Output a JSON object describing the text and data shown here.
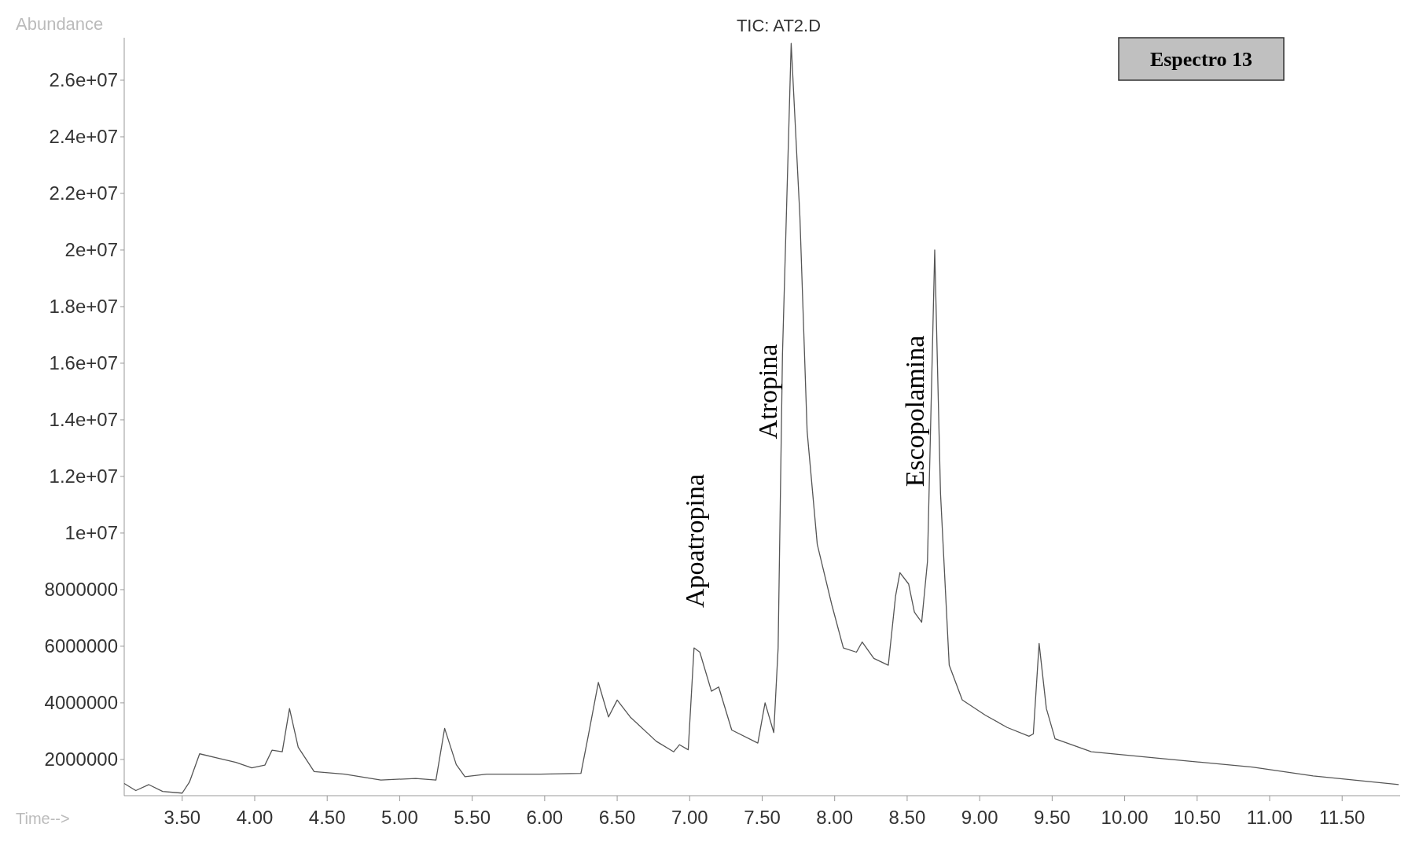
{
  "chart_data": {
    "type": "line",
    "title": "TIC: AT2.D",
    "xlabel": "Time-->",
    "ylabel": "Abundance",
    "annotations": [
      "Apoatropina",
      "Atropina",
      "Escopolamina",
      "Espectro 13"
    ],
    "xlim": [
      3.1,
      11.9
    ],
    "ylim": [
      720000,
      27500000
    ],
    "xticks": [
      {
        "value": 3.5,
        "label": "3.50"
      },
      {
        "value": 4,
        "label": "4.00"
      },
      {
        "value": 4.5,
        "label": "4.50"
      },
      {
        "value": 5,
        "label": "5.00"
      },
      {
        "value": 5.5,
        "label": "5.50"
      },
      {
        "value": 6,
        "label": "6.00"
      },
      {
        "value": 6.5,
        "label": "6.50"
      },
      {
        "value": 7,
        "label": "7.00"
      },
      {
        "value": 7.5,
        "label": "7.50"
      },
      {
        "value": 8,
        "label": "8.00"
      },
      {
        "value": 8.5,
        "label": "8.50"
      },
      {
        "value": 9,
        "label": "9.00"
      },
      {
        "value": 9.5,
        "label": "9.50"
      },
      {
        "value": 10,
        "label": "10.00"
      },
      {
        "value": 10.5,
        "label": "10.50"
      },
      {
        "value": 11,
        "label": "11.00"
      },
      {
        "value": 11.5,
        "label": "11.50"
      }
    ],
    "yticks": [
      2000000,
      4000000,
      6000000,
      8000000,
      {
        "value": 10000000,
        "label": "1e+07"
      },
      {
        "value": 12000000,
        "label": "1.2e+07"
      },
      {
        "value": 14000000,
        "label": "1.4e+07"
      },
      {
        "value": 16000000,
        "label": "1.6e+07"
      },
      {
        "value": 18000000,
        "label": "1.8e+07"
      },
      {
        "value": 20000000,
        "label": "2e+07"
      },
      {
        "value": 22000000,
        "label": "2.2e+07"
      },
      {
        "value": 24000000,
        "label": "2.4e+07"
      },
      {
        "value": 26000000,
        "label": "2.6e+07"
      }
    ],
    "grid": false,
    "marker": "none",
    "line_style": "solid",
    "series": [
      {
        "color": "#555555",
        "x": [
          3.1,
          3.18,
          3.27,
          3.365,
          3.5,
          3.55,
          3.62,
          3.76,
          3.87,
          3.98,
          4.07,
          4.12,
          4.19,
          4.24,
          4.3,
          4.41,
          4.62,
          4.87,
          5.11,
          5.25,
          5.31,
          5.39,
          5.45,
          5.6,
          5.97,
          6.25,
          6.3,
          6.37,
          6.44,
          6.5,
          6.59,
          6.77,
          6.89,
          6.93,
          6.99,
          7.03,
          7.07,
          7.15,
          7.2,
          7.29,
          7.47,
          7.52,
          7.58,
          7.61,
          7.64,
          7.7,
          7.76,
          7.81,
          7.88,
          7.98,
          8.06,
          8.15,
          8.19,
          8.27,
          8.37,
          8.42,
          8.45,
          8.51,
          8.55,
          8.6,
          8.64,
          8.69,
          8.73,
          8.79,
          8.88,
          9.04,
          9.19,
          9.34,
          9.37,
          9.41,
          9.46,
          9.52,
          9.77,
          10.26,
          10.88,
          11.3,
          11.89
        ],
        "values": [
          1150000,
          900000,
          1110000,
          870000,
          810000,
          1200000,
          2200000,
          2030000,
          1900000,
          1700000,
          1800000,
          2330000,
          2270000,
          3800000,
          2430000,
          1570000,
          1480000,
          1270000,
          1330000,
          1270000,
          3100000,
          1820000,
          1390000,
          1480000,
          1480000,
          1510000,
          2820000,
          4720000,
          3500000,
          4100000,
          3500000,
          2640000,
          2270000,
          2520000,
          2340000,
          5940000,
          5790000,
          4410000,
          4560000,
          3040000,
          2580000,
          4000000,
          2950000,
          5940000,
          16300000,
          27300000,
          21200000,
          13600000,
          9600000,
          7470000,
          5940000,
          5790000,
          6150000,
          5570000,
          5330000,
          7770000,
          8600000,
          8200000,
          7200000,
          6850000,
          8990000,
          20000000,
          11400000,
          5330000,
          4100000,
          3560000,
          3130000,
          2820000,
          2900000,
          6100000,
          3800000,
          2730000,
          2270000,
          2030000,
          1730000,
          1420000,
          1110000
        ]
      }
    ]
  }
}
